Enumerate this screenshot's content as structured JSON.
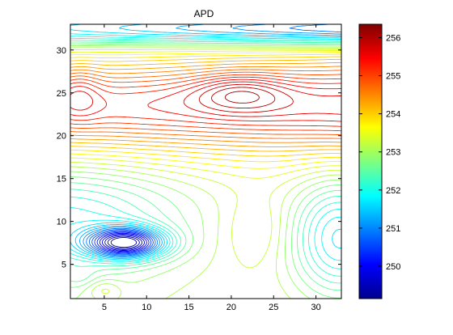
{
  "chart_data": {
    "type": "contour",
    "title": "APD",
    "xlabel": "",
    "ylabel": "",
    "xlim": [
      1,
      33
    ],
    "ylim": [
      1,
      33
    ],
    "x_ticks": [
      5,
      10,
      15,
      20,
      25,
      30
    ],
    "y_ticks": [
      5,
      10,
      15,
      20,
      25,
      30
    ],
    "colorbar": {
      "colormap": "jet",
      "range": [
        249.15,
        256.35
      ],
      "ticks": [
        250,
        251,
        252,
        253,
        254,
        255,
        256
      ]
    },
    "features": [
      {
        "kind": "minimum",
        "x": 7.5,
        "y": 7.5,
        "value": 249.2
      },
      {
        "kind": "maximum",
        "x": 21,
        "y": 25,
        "value": 256.2
      },
      {
        "kind": "maximum",
        "x": 2,
        "y": 25,
        "value": 256.0
      }
    ],
    "grid": false,
    "colors": {
      "background": "#ffffff",
      "axes": "#000000"
    }
  }
}
